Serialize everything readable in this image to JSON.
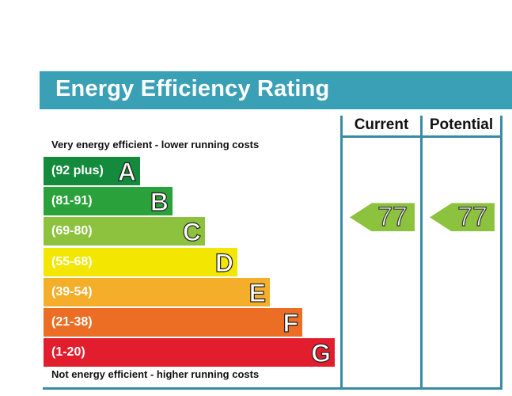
{
  "title": "Energy Efficiency Rating",
  "columns": {
    "current": "Current",
    "potential": "Potential"
  },
  "captions": {
    "top": "Very energy efficient - lower running costs",
    "bottom": "Not energy efficient - higher running costs"
  },
  "bands": [
    {
      "letter": "A",
      "range": "(92 plus)",
      "color": "#138a3c"
    },
    {
      "letter": "B",
      "range": "(81-91)",
      "color": "#2aa13a"
    },
    {
      "letter": "C",
      "range": "(69-80)",
      "color": "#8dc23f"
    },
    {
      "letter": "D",
      "range": "(55-68)",
      "color": "#f3e600"
    },
    {
      "letter": "E",
      "range": "(39-54)",
      "color": "#f4ae2a"
    },
    {
      "letter": "F",
      "range": "(21-38)",
      "color": "#ec6e25"
    },
    {
      "letter": "G",
      "range": "(1-20)",
      "color": "#e21d2d"
    }
  ],
  "ratings": {
    "current": {
      "value": "77",
      "band": "C",
      "color": "#8dc23f"
    },
    "potential": {
      "value": "77",
      "band": "C",
      "color": "#8dc23f"
    }
  },
  "chart_data": {
    "type": "bar",
    "title": "Energy Efficiency Rating",
    "categories": [
      "A",
      "B",
      "C",
      "D",
      "E",
      "F",
      "G"
    ],
    "series": [
      {
        "name": "Current",
        "values": [
          null,
          null,
          77,
          null,
          null,
          null,
          null
        ]
      },
      {
        "name": "Potential",
        "values": [
          null,
          null,
          77,
          null,
          null,
          null,
          null
        ]
      }
    ],
    "xlabel": "",
    "ylabel": ""
  }
}
